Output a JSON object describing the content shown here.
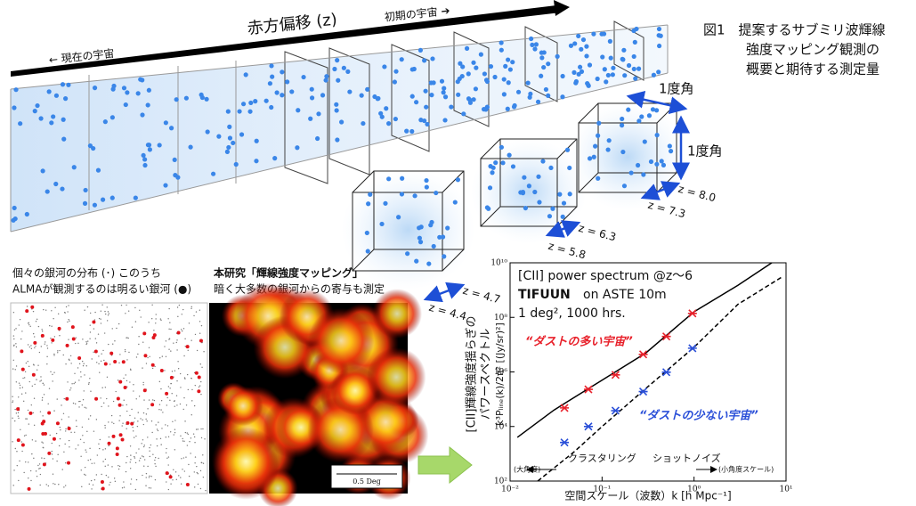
{
  "header": {
    "redshift_label": "赤方偏移 (z)",
    "present": "← 現在の宇宙",
    "early": "初期の宇宙 ➔"
  },
  "caption": [
    "図1　提案するサブミリ波輝線",
    "強度マッピング観測の",
    "概要と期待する測定量"
  ],
  "cubes": {
    "size_labels": [
      "1度角",
      "1度角"
    ],
    "z_labels": [
      "z = 8.0",
      "z = 7.3",
      "z = 6.3",
      "z = 5.8",
      "z = 4.7",
      "z = 4.4"
    ]
  },
  "panels": {
    "galaxies": {
      "lines": [
        "個々の銀河の分布 (･) このうち",
        "ALMAが観測するのは明るい銀河 (●)"
      ]
    },
    "mapping": {
      "lines": [
        "本研究「輝線強度マッピング」",
        "暗く大多数の銀河からの寄与も測定"
      ],
      "scale_bar": "0.5 Deg"
    }
  },
  "chart_data": {
    "type": "line",
    "annotations": [
      "[CII] power spectrum @z〜6",
      "TIFUUN",
      "on ASTE 10m",
      "1 deg², 1000 hrs."
    ],
    "ylabel": [
      "[CII]輝線強度揺らぎの",
      "パワースペクトル",
      "k³Pₗᵢₙₑ(k)/2π² [(Jy/sr)²]"
    ],
    "xlabel": "空間スケール（波数）k [h Mpc⁻¹]",
    "regimes": [
      "クラスタリング",
      "ショットノイズ",
      "(大角度)",
      "(小角度スケール)"
    ],
    "log_x": true,
    "log_y": true,
    "xlim": [
      0.01,
      10
    ],
    "ylim": [
      100,
      10000000000
    ],
    "xticks": [
      {
        "value": 0.01,
        "label": "10⁻²"
      },
      {
        "value": 0.1,
        "label": "10⁻¹"
      },
      {
        "value": 1,
        "label": "10⁰"
      },
      {
        "value": 10,
        "label": "10¹"
      }
    ],
    "yticks": [
      {
        "value": 100,
        "label": "10²"
      },
      {
        "value": 10000,
        "label": "10⁴"
      },
      {
        "value": 1000000,
        "label": "10⁶"
      },
      {
        "value": 100000000,
        "label": "10⁸"
      },
      {
        "value": 10000000000,
        "label": "10¹⁰"
      }
    ],
    "series": [
      {
        "name": "“ダストの多い宇宙”",
        "color": "#e8202a",
        "dashed": false,
        "x": [
          0.039,
          0.071,
          0.14,
          0.28,
          0.5,
          0.96
        ],
        "values": [
          48000,
          230000,
          780000,
          4400000,
          20000000,
          140000000
        ],
        "curve_x": [
          0.012,
          0.03,
          0.1,
          0.3,
          1,
          3,
          7
        ],
        "curve_values": [
          4000,
          40000,
          500000,
          5000000,
          160000000,
          1500000000,
          10000000000
        ]
      },
      {
        "name": "“ダストの少ない宇宙”",
        "color": "#2a4fd8",
        "dashed": true,
        "x": [
          0.039,
          0.071,
          0.14,
          0.28,
          0.5,
          0.96
        ],
        "values": [
          2600,
          10000,
          38000,
          190000,
          980000,
          7400000
        ],
        "curve_x": [
          0.02,
          0.05,
          0.1,
          0.3,
          1,
          3,
          9
        ],
        "curve_values": [
          100,
          1200,
          10000,
          250000,
          8000000,
          300000000,
          3000000000
        ]
      }
    ]
  }
}
